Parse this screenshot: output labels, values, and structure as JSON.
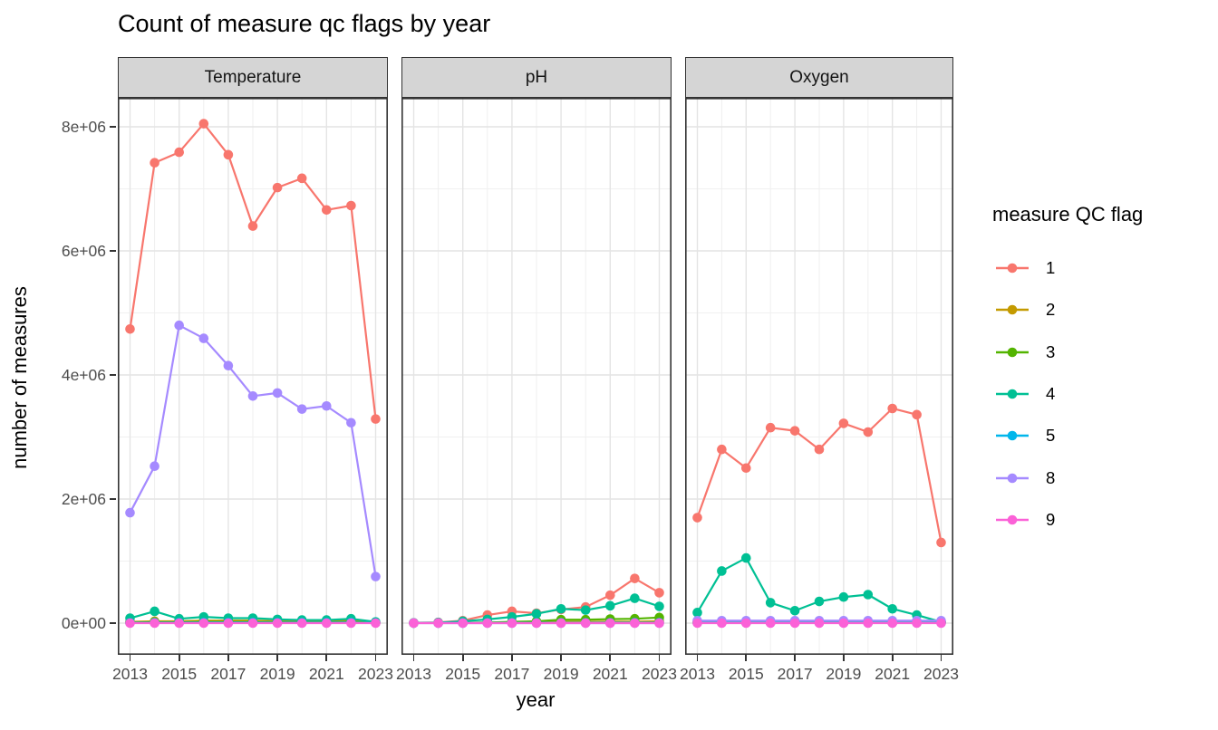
{
  "chart_data": {
    "type": "line",
    "title": "Count of measure qc flags by year",
    "xlabel": "year",
    "ylabel": "number of measures",
    "legend_title": "measure QC flag",
    "legend_position": "right",
    "grid": true,
    "x": [
      2013,
      2014,
      2015,
      2016,
      2017,
      2018,
      2019,
      2020,
      2021,
      2022,
      2023
    ],
    "x_tick_labels": [
      "2013",
      "2015",
      "2017",
      "2019",
      "2021",
      "2023"
    ],
    "x_tick_indices": [
      0,
      2,
      4,
      6,
      8,
      10
    ],
    "y_tick_labels": [
      "0e+00",
      "2e+06",
      "4e+06",
      "6e+06",
      "8e+06"
    ],
    "y_tick_values": [
      0,
      2000000,
      4000000,
      6000000,
      8000000
    ],
    "y_minor_values": [
      1000000,
      3000000,
      5000000,
      7000000
    ],
    "ylim": [
      -500000,
      8470000
    ],
    "flags": [
      {
        "label": "1",
        "color": "#F8766D"
      },
      {
        "label": "2",
        "color": "#C49A00"
      },
      {
        "label": "3",
        "color": "#53B400"
      },
      {
        "label": "4",
        "color": "#00C094"
      },
      {
        "label": "5",
        "color": "#00B6EB"
      },
      {
        "label": "8",
        "color": "#A58AFF"
      },
      {
        "label": "9",
        "color": "#FB61D7"
      }
    ],
    "facets": [
      {
        "label": "Temperature",
        "series": [
          {
            "name": "1",
            "values": [
              4740000,
              7420000,
              7590000,
              8050000,
              7550000,
              6400000,
              7020000,
              7170000,
              6660000,
              6730000,
              3290000
            ]
          },
          {
            "name": "2",
            "values": [
              20000,
              30000,
              30000,
              40000,
              40000,
              40000,
              30000,
              30000,
              30000,
              50000,
              10000
            ]
          },
          {
            "name": "3",
            "values": [
              10000,
              15000,
              15000,
              20000,
              20000,
              20000,
              15000,
              15000,
              15000,
              20000,
              5000
            ]
          },
          {
            "name": "4",
            "values": [
              80000,
              190000,
              70000,
              100000,
              80000,
              80000,
              60000,
              50000,
              50000,
              70000,
              20000
            ]
          },
          {
            "name": "5",
            "values": [
              5000,
              8000,
              8000,
              10000,
              10000,
              10000,
              8000,
              8000,
              8000,
              10000,
              3000
            ]
          },
          {
            "name": "8",
            "values": [
              1780000,
              2530000,
              4800000,
              4590000,
              4150000,
              3660000,
              3710000,
              3450000,
              3500000,
              3230000,
              750000
            ]
          },
          {
            "name": "9",
            "values": [
              0,
              0,
              0,
              0,
              0,
              0,
              0,
              0,
              0,
              0,
              0
            ]
          }
        ]
      },
      {
        "label": "pH",
        "series": [
          {
            "name": "1",
            "values": [
              5000,
              12000,
              40000,
              130000,
              190000,
              160000,
              220000,
              260000,
              450000,
              720000,
              490000
            ]
          },
          {
            "name": "2",
            "values": [
              2000,
              3000,
              5000,
              8000,
              12000,
              15000,
              20000,
              20000,
              25000,
              25000,
              30000
            ]
          },
          {
            "name": "3",
            "values": [
              1000,
              2000,
              5000,
              10000,
              20000,
              30000,
              55000,
              55000,
              65000,
              70000,
              90000
            ]
          },
          {
            "name": "4",
            "values": [
              3000,
              8000,
              30000,
              60000,
              100000,
              150000,
              230000,
              210000,
              280000,
              400000,
              270000
            ]
          },
          {
            "name": "5",
            "values": [
              1000,
              1000,
              2000,
              3000,
              4000,
              5000,
              6000,
              6000,
              7000,
              8000,
              8000
            ]
          },
          {
            "name": "8",
            "values": [
              0,
              0,
              0,
              0,
              0,
              0,
              0,
              0,
              0,
              0,
              0
            ]
          },
          {
            "name": "9",
            "values": [
              0,
              0,
              0,
              0,
              0,
              0,
              0,
              0,
              0,
              0,
              0
            ]
          }
        ]
      },
      {
        "label": "Oxygen",
        "series": [
          {
            "name": "1",
            "values": [
              1700000,
              2800000,
              2500000,
              3150000,
              3100000,
              2800000,
              3220000,
              3080000,
              3460000,
              3360000,
              1300000
            ]
          },
          {
            "name": "2",
            "values": [
              15000,
              15000,
              15000,
              15000,
              15000,
              15000,
              15000,
              15000,
              15000,
              15000,
              15000
            ]
          },
          {
            "name": "3",
            "values": [
              8000,
              8000,
              8000,
              8000,
              8000,
              8000,
              8000,
              8000,
              8000,
              8000,
              8000
            ]
          },
          {
            "name": "4",
            "values": [
              170000,
              840000,
              1050000,
              330000,
              200000,
              350000,
              420000,
              460000,
              230000,
              130000,
              20000
            ]
          },
          {
            "name": "5",
            "values": [
              5000,
              5000,
              5000,
              5000,
              5000,
              5000,
              5000,
              5000,
              5000,
              5000,
              5000
            ]
          },
          {
            "name": "8",
            "values": [
              40000,
              40000,
              40000,
              40000,
              40000,
              40000,
              40000,
              40000,
              40000,
              40000,
              40000
            ]
          },
          {
            "name": "9",
            "values": [
              0,
              0,
              0,
              0,
              0,
              0,
              0,
              0,
              0,
              0,
              0
            ]
          }
        ]
      }
    ]
  }
}
